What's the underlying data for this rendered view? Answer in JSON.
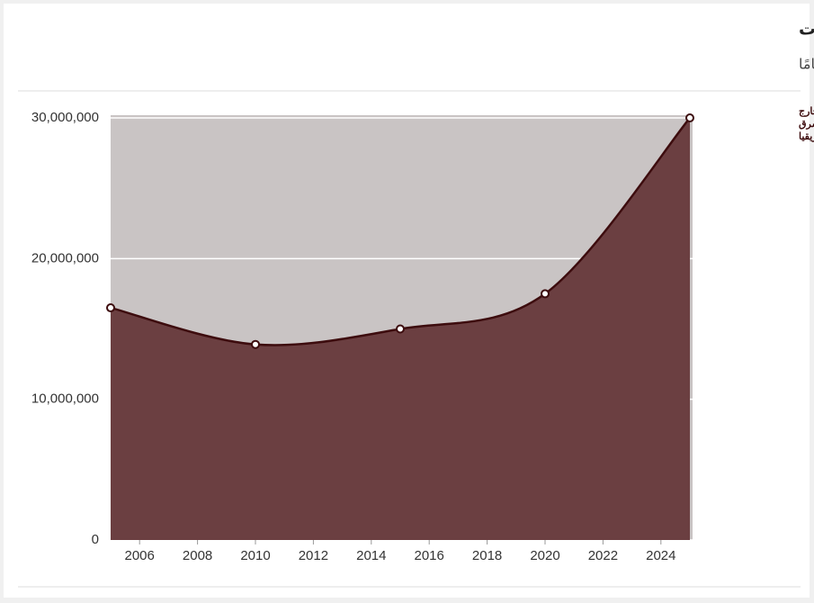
{
  "chart_data": {
    "type": "area",
    "title": "حزام من الجهل يحيط المنطقة العربية في غضون سنوات",
    "subtitle": "أسوأ انتكاسة تعليمية تشهدها المنطقة منذ عشرين عامًا",
    "annotation": [
      "عدد الاطفال خارج",
      "المدرسة في الشرق",
      "الأوسط وشمال افريقيا"
    ],
    "x": [
      2005,
      2010,
      2015,
      2020,
      2025
    ],
    "series": [
      {
        "name": "عدد الاطفال خارج المدرسة في الشرق الأوسط وشمال افريقيا",
        "color": "#6b3f41",
        "line_color": "#3d0c0e",
        "values": [
          16500000,
          13900000,
          15000000,
          17500000,
          30000000
        ]
      }
    ],
    "xlim": [
      2005,
      2025
    ],
    "xticks": [
      2006,
      2008,
      2010,
      2012,
      2014,
      2016,
      2018,
      2020,
      2022,
      2024
    ],
    "ylim": [
      0,
      30000000
    ],
    "yticks": [
      0,
      {
        "value": 10000000,
        "label": "10,000,000"
      },
      {
        "value": 20000000,
        "label": "20,000,000"
      },
      {
        "value": 30000000,
        "label": "30,000,000"
      }
    ],
    "grid": true,
    "plot_background": "#c9c4c4"
  }
}
